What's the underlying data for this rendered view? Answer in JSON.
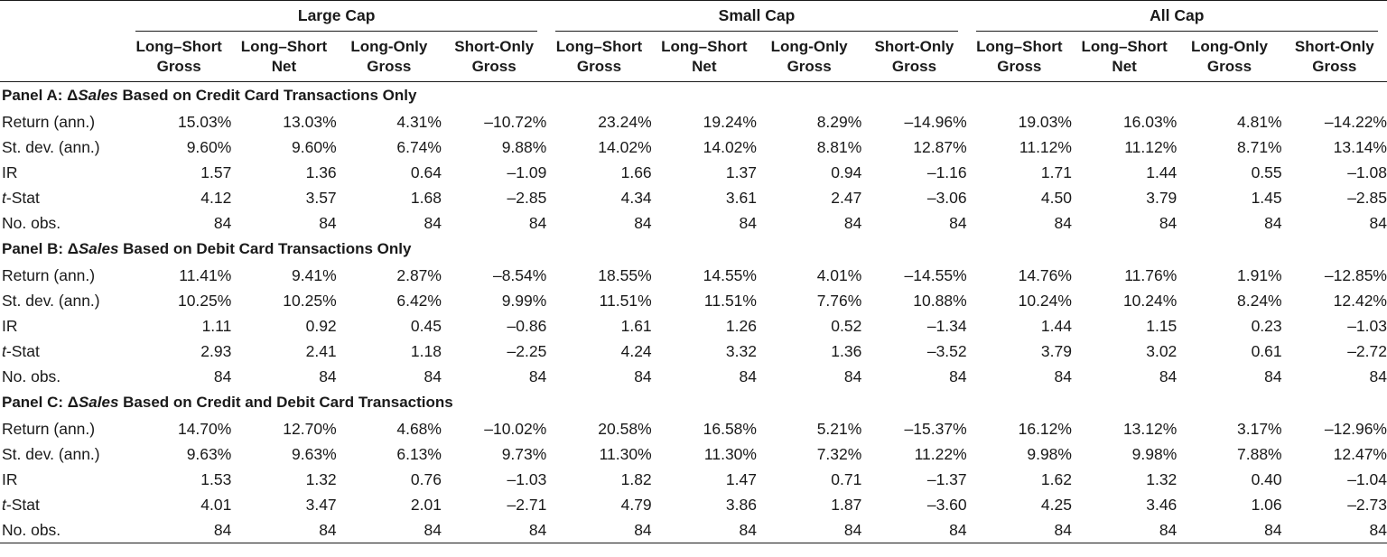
{
  "groups": [
    "Large Cap",
    "Small Cap",
    "All Cap"
  ],
  "columns": [
    {
      "line1": "Long–Short",
      "line2": "Gross"
    },
    {
      "line1": "Long–Short",
      "line2": "Net"
    },
    {
      "line1": "Long-Only",
      "line2": "Gross"
    },
    {
      "line1": "Short-Only",
      "line2": "Gross"
    }
  ],
  "panels": [
    {
      "prefix": "Panel A: Δ",
      "italic": "Sales",
      "suffix": " Based on Credit Card Transactions Only",
      "rows": [
        {
          "label": "Return (ann.)",
          "values": [
            "15.03%",
            "13.03%",
            "4.31%",
            "–10.72%",
            "23.24%",
            "19.24%",
            "8.29%",
            "–14.96%",
            "19.03%",
            "16.03%",
            "4.81%",
            "–14.22%"
          ]
        },
        {
          "label": "St. dev. (ann.)",
          "values": [
            "9.60%",
            "9.60%",
            "6.74%",
            "9.88%",
            "14.02%",
            "14.02%",
            "8.81%",
            "12.87%",
            "11.12%",
            "11.12%",
            "8.71%",
            "13.14%"
          ]
        },
        {
          "label": "IR",
          "values": [
            "1.57",
            "1.36",
            "0.64",
            "–1.09",
            "1.66",
            "1.37",
            "0.94",
            "–1.16",
            "1.71",
            "1.44",
            "0.55",
            "–1.08"
          ]
        },
        {
          "label_italic": "t",
          "label": "-Stat",
          "values": [
            "4.12",
            "3.57",
            "1.68",
            "–2.85",
            "4.34",
            "3.61",
            "2.47",
            "–3.06",
            "4.50",
            "3.79",
            "1.45",
            "–2.85"
          ]
        },
        {
          "label": "No. obs.",
          "values": [
            "84",
            "84",
            "84",
            "84",
            "84",
            "84",
            "84",
            "84",
            "84",
            "84",
            "84",
            "84"
          ]
        }
      ]
    },
    {
      "prefix": "Panel B: Δ",
      "italic": "Sales",
      "suffix": " Based on Debit Card Transactions Only",
      "rows": [
        {
          "label": "Return (ann.)",
          "values": [
            "11.41%",
            "9.41%",
            "2.87%",
            "–8.54%",
            "18.55%",
            "14.55%",
            "4.01%",
            "–14.55%",
            "14.76%",
            "11.76%",
            "1.91%",
            "–12.85%"
          ]
        },
        {
          "label": "St. dev. (ann.)",
          "values": [
            "10.25%",
            "10.25%",
            "6.42%",
            "9.99%",
            "11.51%",
            "11.51%",
            "7.76%",
            "10.88%",
            "10.24%",
            "10.24%",
            "8.24%",
            "12.42%"
          ]
        },
        {
          "label": "IR",
          "values": [
            "1.11",
            "0.92",
            "0.45",
            "–0.86",
            "1.61",
            "1.26",
            "0.52",
            "–1.34",
            "1.44",
            "1.15",
            "0.23",
            "–1.03"
          ]
        },
        {
          "label_italic": "t",
          "label": "-Stat",
          "values": [
            "2.93",
            "2.41",
            "1.18",
            "–2.25",
            "4.24",
            "3.32",
            "1.36",
            "–3.52",
            "3.79",
            "3.02",
            "0.61",
            "–2.72"
          ]
        },
        {
          "label": "No. obs.",
          "values": [
            "84",
            "84",
            "84",
            "84",
            "84",
            "84",
            "84",
            "84",
            "84",
            "84",
            "84",
            "84"
          ]
        }
      ]
    },
    {
      "prefix": "Panel C: Δ",
      "italic": "Sales",
      "suffix": " Based on Credit and Debit Card Transactions",
      "rows": [
        {
          "label": "Return (ann.)",
          "values": [
            "14.70%",
            "12.70%",
            "4.68%",
            "–10.02%",
            "20.58%",
            "16.58%",
            "5.21%",
            "–15.37%",
            "16.12%",
            "13.12%",
            "3.17%",
            "–12.96%"
          ]
        },
        {
          "label": "St. dev. (ann.)",
          "values": [
            "9.63%",
            "9.63%",
            "6.13%",
            "9.73%",
            "11.30%",
            "11.30%",
            "7.32%",
            "11.22%",
            "9.98%",
            "9.98%",
            "7.88%",
            "12.47%"
          ]
        },
        {
          "label": "IR",
          "values": [
            "1.53",
            "1.32",
            "0.76",
            "–1.03",
            "1.82",
            "1.47",
            "0.71",
            "–1.37",
            "1.62",
            "1.32",
            "0.40",
            "–1.04"
          ]
        },
        {
          "label_italic": "t",
          "label": "-Stat",
          "values": [
            "4.01",
            "3.47",
            "2.01",
            "–2.71",
            "4.79",
            "3.86",
            "1.87",
            "–3.60",
            "4.25",
            "3.46",
            "1.06",
            "–2.73"
          ]
        },
        {
          "label": "No. obs.",
          "values": [
            "84",
            "84",
            "84",
            "84",
            "84",
            "84",
            "84",
            "84",
            "84",
            "84",
            "84",
            "84"
          ]
        }
      ]
    }
  ]
}
